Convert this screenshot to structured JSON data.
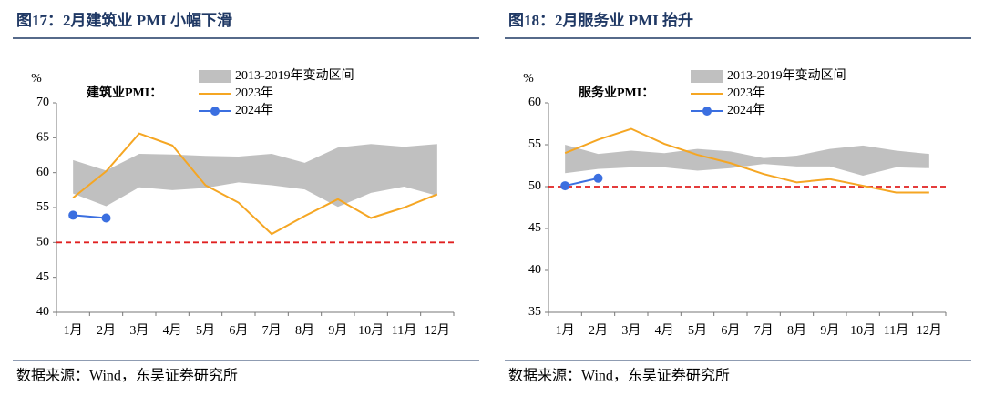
{
  "chart_data": [
    {
      "type": "line",
      "title": "图17：2月建筑业 PMI 小幅下滑",
      "y_label": "%",
      "annotation": "建筑业PMI：",
      "categories": [
        "1月",
        "2月",
        "3月",
        "4月",
        "5月",
        "6月",
        "7月",
        "8月",
        "9月",
        "10月",
        "11月",
        "12月"
      ],
      "series": [
        {
          "name": "2013-2019年变动区间",
          "type": "band",
          "color": "#c0c0c0",
          "values": [
            61.8,
            60.3,
            62.7,
            62.6,
            62.4,
            62.3,
            62.7,
            61.4,
            63.6,
            64.1,
            63.7,
            64.1
          ],
          "lower": [
            57.0,
            55.2,
            57.9,
            57.5,
            57.8,
            58.6,
            58.2,
            57.6,
            55.1,
            57.1,
            58.0,
            56.7
          ]
        },
        {
          "name": "2023年",
          "color": "#f5a623",
          "values": [
            56.4,
            60.2,
            65.6,
            63.9,
            58.2,
            55.7,
            51.2,
            53.8,
            56.2,
            53.5,
            55.0,
            56.9
          ]
        },
        {
          "name": "2024年",
          "color": "#3b6fe0",
          "markers": true,
          "values": [
            53.9,
            53.5,
            null,
            null,
            null,
            null,
            null,
            null,
            null,
            null,
            null,
            null
          ]
        }
      ],
      "reference_line": {
        "value": 50,
        "color": "#e02020"
      },
      "ylim": [
        40,
        70
      ],
      "yticks": [
        40,
        45,
        50,
        55,
        60,
        65,
        70
      ],
      "source": "数据来源：Wind，东吴证券研究所"
    },
    {
      "type": "line",
      "title": "图18：2月服务业 PMI 抬升",
      "y_label": "%",
      "annotation": "服务业PMI：",
      "categories": [
        "1月",
        "2月",
        "3月",
        "4月",
        "5月",
        "6月",
        "7月",
        "8月",
        "9月",
        "10月",
        "11月",
        "12月"
      ],
      "series": [
        {
          "name": "2013-2019年变动区间",
          "type": "band",
          "color": "#c0c0c0",
          "values": [
            55.0,
            53.9,
            54.3,
            54.0,
            54.5,
            54.2,
            53.4,
            53.7,
            54.5,
            54.9,
            54.3,
            53.9
          ],
          "lower": [
            51.6,
            52.1,
            52.3,
            52.3,
            51.9,
            52.2,
            52.7,
            52.4,
            52.4,
            51.3,
            52.3,
            52.2
          ]
        },
        {
          "name": "2023年",
          "color": "#f5a623",
          "values": [
            54.0,
            55.6,
            56.9,
            55.1,
            53.8,
            52.8,
            51.5,
            50.5,
            50.9,
            50.1,
            49.3,
            49.3
          ]
        },
        {
          "name": "2024年",
          "color": "#3b6fe0",
          "markers": true,
          "values": [
            50.1,
            51.0,
            null,
            null,
            null,
            null,
            null,
            null,
            null,
            null,
            null,
            null
          ]
        }
      ],
      "reference_line": {
        "value": 50,
        "color": "#e02020"
      },
      "ylim": [
        35,
        60
      ],
      "yticks": [
        35,
        40,
        45,
        50,
        55,
        60
      ],
      "source": "数据来源：Wind，东吴证券研究所"
    }
  ]
}
